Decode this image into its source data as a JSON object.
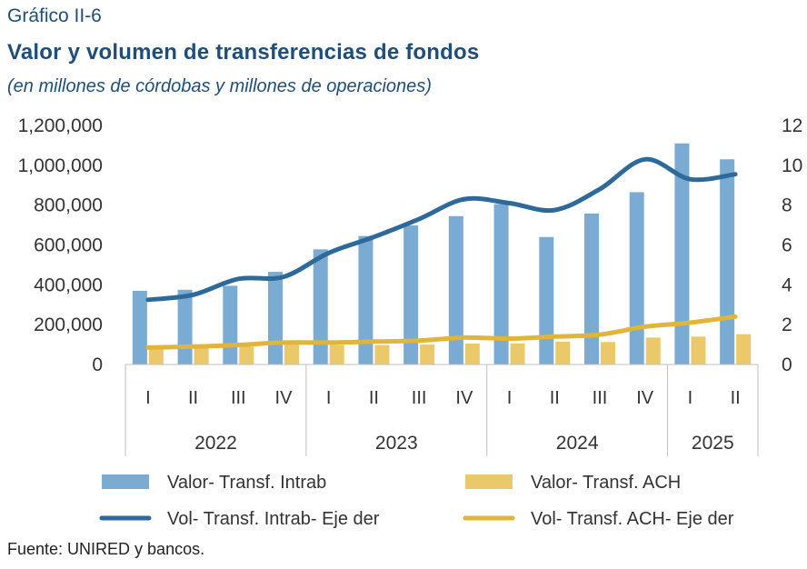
{
  "header": {
    "kicker": "Gráfico II-6",
    "title": "Valor y volumen de transferencias de fondos",
    "subtitle": "(en millones de córdobas y millones de operaciones)"
  },
  "footer": {
    "source": "Fuente: UNIRED y bancos."
  },
  "chart_data": {
    "type": "bar",
    "title": "Valor y volumen de transferencias de fondos",
    "subtitle": "(en millones de córdobas y millones de operaciones)",
    "categories": [
      "I",
      "II",
      "III",
      "IV",
      "I",
      "II",
      "III",
      "IV",
      "I",
      "II",
      "III",
      "IV",
      "I",
      "II"
    ],
    "groups": [
      {
        "label": "2022",
        "count": 4
      },
      {
        "label": "2023",
        "count": 4
      },
      {
        "label": "2024",
        "count": 4
      },
      {
        "label": "2025",
        "count": 2
      }
    ],
    "y_left": {
      "ylim": [
        0,
        1200000
      ],
      "ticks": [
        0,
        200000,
        400000,
        600000,
        800000,
        1000000,
        1200000
      ],
      "tick_labels": [
        "0",
        "200,000",
        "400,000",
        "600,000",
        "800,000",
        "1,000,000",
        "1,200,000"
      ]
    },
    "y_right": {
      "ylim": [
        0,
        12
      ],
      "ticks": [
        0,
        2,
        4,
        6,
        8,
        10,
        12
      ],
      "tick_labels": [
        "0",
        "2",
        "4",
        "6",
        "8",
        "10",
        "12"
      ]
    },
    "series": [
      {
        "name": "Valor- Transf. Intrab",
        "kind": "bar",
        "axis": "left",
        "color": "#7aabd3",
        "values": [
          370000,
          375000,
          395000,
          465000,
          578000,
          645000,
          698000,
          745000,
          805000,
          640000,
          758000,
          865000,
          1110000,
          1030000
        ]
      },
      {
        "name": "Valor- Transf. ACH",
        "kind": "bar",
        "axis": "left",
        "color": "#ebc86a",
        "values": [
          82000,
          88000,
          90000,
          100000,
          98000,
          98000,
          100000,
          105000,
          106000,
          115000,
          113000,
          135000,
          140000,
          152000
        ]
      },
      {
        "name": "Vol- Transf. Intrab- Eje der",
        "kind": "line",
        "axis": "right",
        "color": "#2e6a99",
        "values": [
          3.25,
          3.5,
          4.3,
          4.4,
          5.6,
          6.4,
          7.3,
          8.3,
          8.1,
          7.75,
          8.8,
          10.3,
          9.3,
          9.55
        ]
      },
      {
        "name": "Vol- Transf. ACH- Eje der",
        "kind": "line",
        "axis": "right",
        "color": "#e0b53a",
        "values": [
          0.85,
          0.9,
          0.98,
          1.1,
          1.1,
          1.15,
          1.2,
          1.35,
          1.3,
          1.4,
          1.5,
          1.9,
          2.1,
          2.4
        ]
      }
    ],
    "legend_position": "bottom",
    "grid": false
  }
}
